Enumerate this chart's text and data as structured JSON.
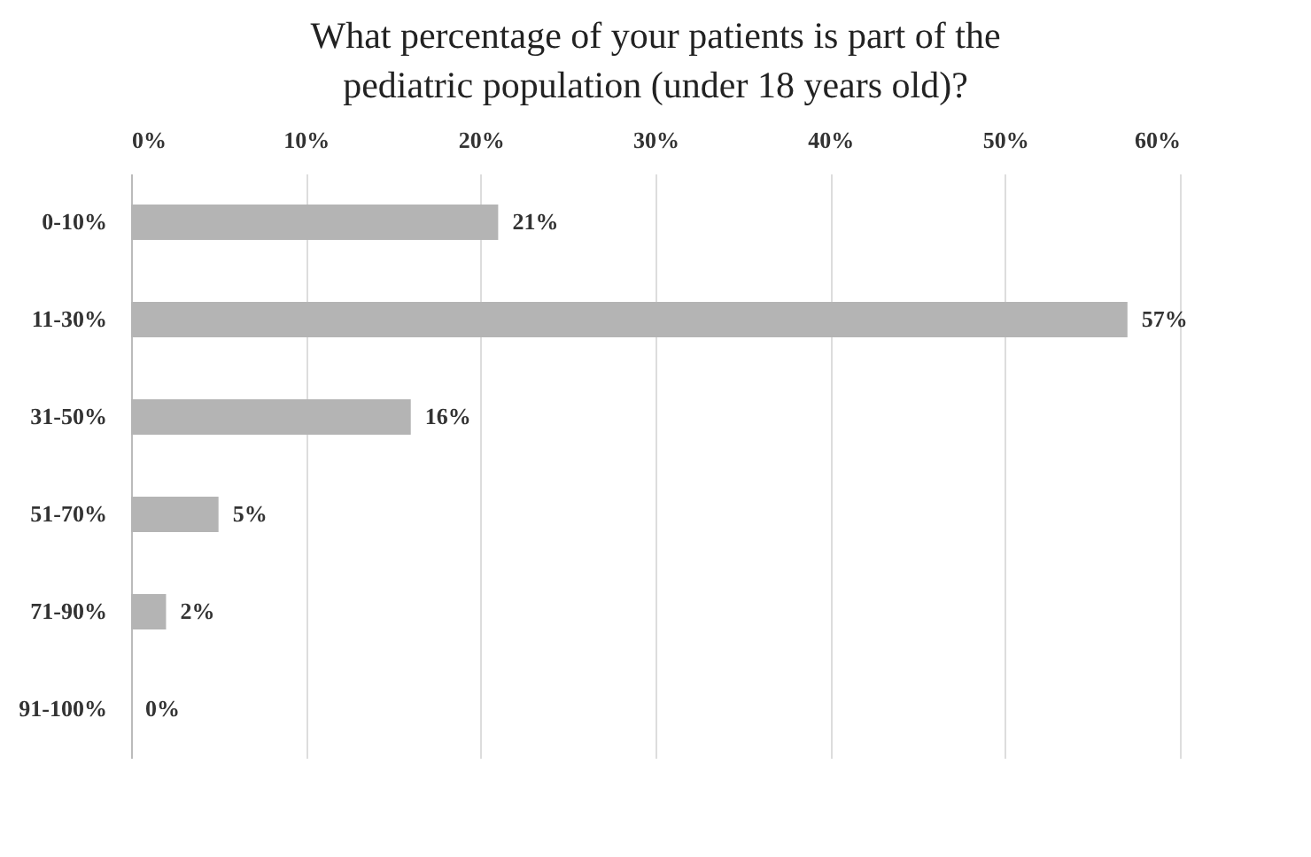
{
  "chart_data": {
    "type": "bar",
    "orientation": "horizontal",
    "title": "What percentage of your patients is part of the pediatric population (under 18 years old)?",
    "categories": [
      "0-10%",
      "11-30%",
      "31-50%",
      "51-70%",
      "71-90%",
      "91-100%"
    ],
    "values": [
      21,
      57,
      16,
      5,
      2,
      0
    ],
    "value_labels": [
      "21%",
      "57%",
      "16%",
      "5%",
      "2%",
      "0%"
    ],
    "color": "#b4b4b4",
    "xlim": [
      0,
      60
    ],
    "xticks": [
      {
        "value": 0,
        "label": "0%"
      },
      {
        "value": 10,
        "label": "10%"
      },
      {
        "value": 20,
        "label": "20%"
      },
      {
        "value": 30,
        "label": "30%"
      },
      {
        "value": 40,
        "label": "40%"
      },
      {
        "value": 50,
        "label": "50%"
      },
      {
        "value": 60,
        "label": "60%"
      }
    ],
    "grid": "x"
  }
}
